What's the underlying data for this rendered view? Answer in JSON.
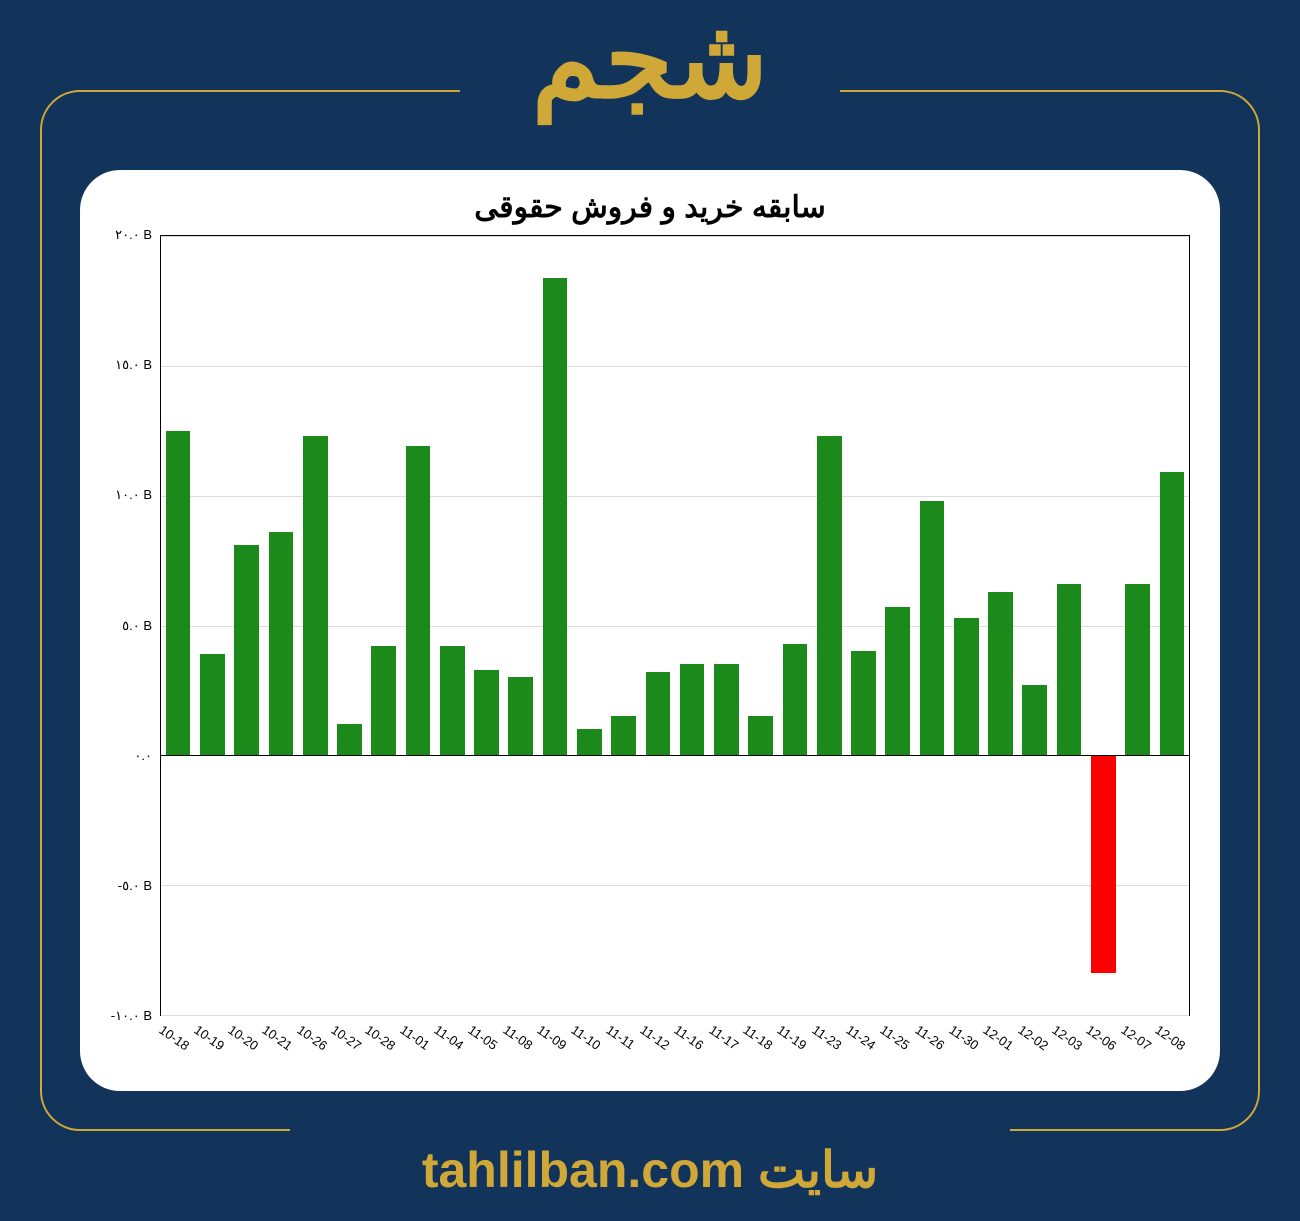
{
  "header": {
    "symbol": "شجم"
  },
  "footer": {
    "prefix": "سایت ",
    "site": "tahlilban.com"
  },
  "chart": {
    "type": "bar",
    "title": "سابقه خرید و فروش حقوقی",
    "ymin": -10.0,
    "ymax": 20.0,
    "ytick_step": 5.0,
    "y_suffix": " B",
    "y_tick_labels": [
      "-١٠.٠ B",
      "-٥.٠ B",
      "٠.٠",
      "٥.٠ B",
      "١٠.٠ B",
      "١٥.٠ B",
      "٢٠.٠ B"
    ],
    "y_tick_values": [
      -10,
      -5,
      0,
      5,
      10,
      15,
      20
    ],
    "categories": [
      "10-18",
      "10-19",
      "10-20",
      "10-21",
      "10-26",
      "10-27",
      "10-28",
      "11-01",
      "11-04",
      "11-05",
      "11-08",
      "11-09",
      "11-10",
      "11-11",
      "11-12",
      "11-16",
      "11-17",
      "11-18",
      "11-19",
      "11-23",
      "11-24",
      "11-25",
      "11-26",
      "11-30",
      "12-01",
      "12-02",
      "12-03",
      "12-06",
      "12-07",
      "12-08"
    ],
    "values": [
      12.5,
      3.9,
      8.1,
      8.6,
      12.3,
      1.2,
      4.2,
      11.9,
      4.2,
      3.3,
      3.0,
      18.4,
      1.0,
      1.5,
      3.2,
      3.5,
      3.5,
      1.5,
      4.3,
      12.3,
      4.0,
      5.7,
      9.8,
      5.3,
      6.3,
      2.7,
      6.6,
      -8.4,
      6.6,
      10.9
    ],
    "pos_color": "#1b8a1b",
    "neg_color": "#ff0000",
    "background_color": "#ffffff",
    "grid_color": "#dddddd",
    "axis_color": "#000000",
    "bar_width": 0.72,
    "title_fontsize": 30,
    "tick_fontsize": 13,
    "page_bg": "#12335a",
    "accent_color": "#cfa838"
  }
}
